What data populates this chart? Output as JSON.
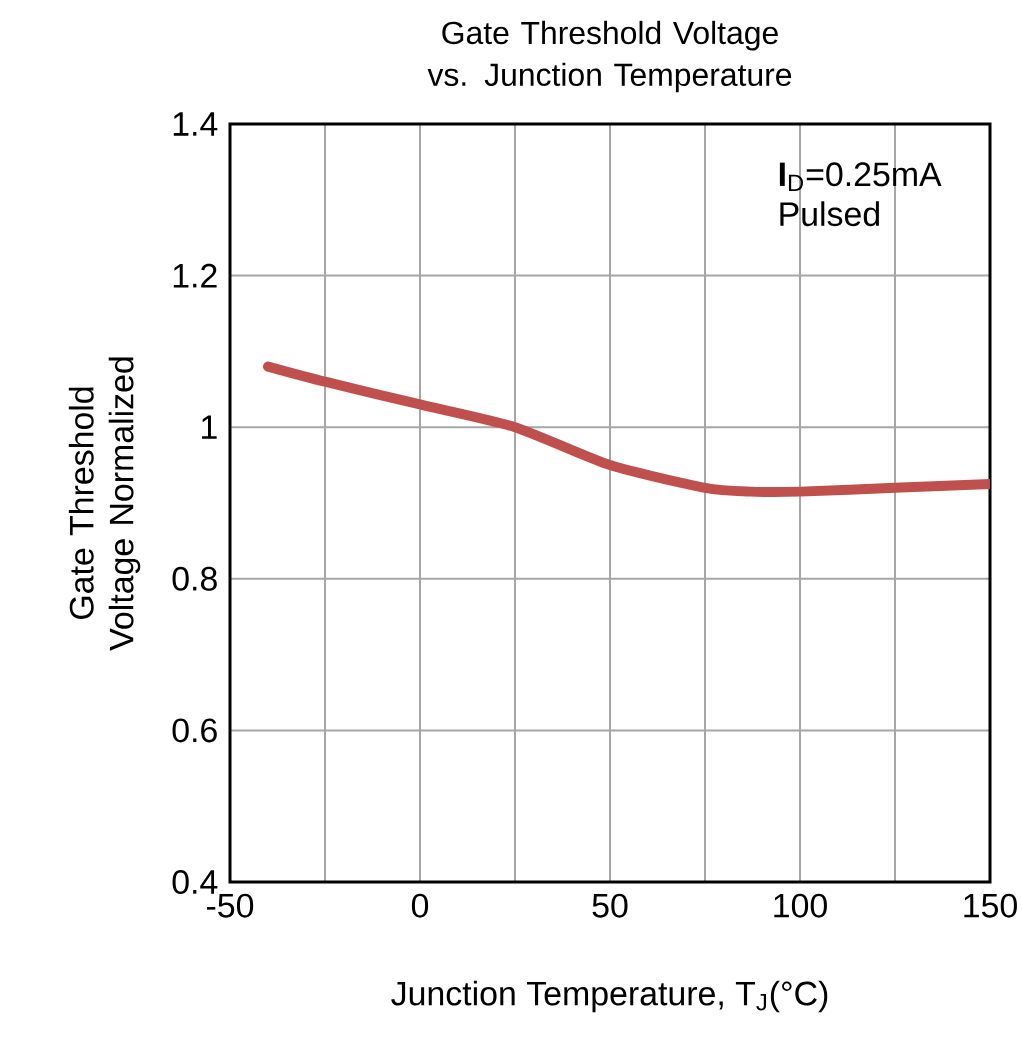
{
  "chart_data": {
    "type": "line",
    "title": "Gate Threshold Voltage vs. Junction Temperature",
    "xlabel": "Junction Temperature, T$_{J}$(°C)",
    "ylabel": "Gate Threshold Voltage Normalized",
    "annotations": [
      "**I**$_{D}$=0.25mA",
      "Pulsed"
    ],
    "x": [
      -40,
      -25,
      0,
      25,
      50,
      75,
      87,
      100,
      125,
      150
    ],
    "series": [
      {
        "color": "#c0504d",
        "values": [
          1.08,
          1.06,
          1.03,
          1.0,
          0.95,
          0.92,
          0.915,
          0.915,
          0.92,
          0.925
        ]
      }
    ],
    "xlim": [
      -50,
      150
    ],
    "xticks": [
      -50,
      {
        "value": -25,
        "label": null
      },
      0,
      {
        "value": 25,
        "label": null
      },
      50,
      {
        "value": 75,
        "label": null
      },
      100,
      {
        "value": 125,
        "label": null
      },
      150
    ],
    "ylim": [
      0.4,
      1.4
    ],
    "yticks": [
      0.4,
      0.6,
      0.8,
      1,
      1.2,
      1.4
    ],
    "grid": true,
    "line_style": "solid",
    "marker": "none"
  }
}
